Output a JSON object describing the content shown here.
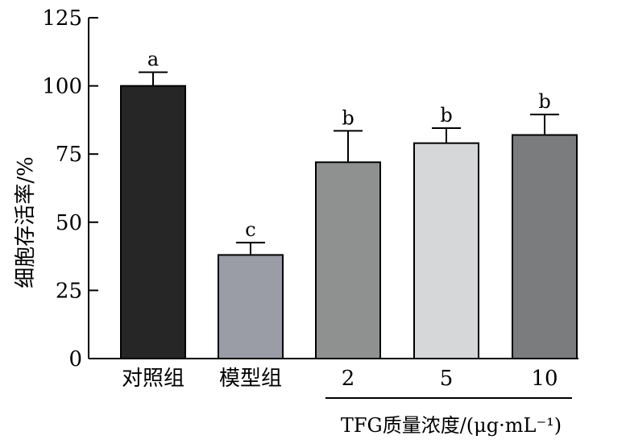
{
  "chart_data": {
    "type": "bar",
    "ylabel": "细胞存活率/%",
    "ylim": [
      0,
      125
    ],
    "yticks": [
      0,
      25,
      50,
      75,
      100,
      125
    ],
    "categories": [
      "对照组",
      "模型组",
      "2",
      "5",
      "10"
    ],
    "values": [
      100,
      38,
      72,
      79,
      82
    ],
    "errors": [
      5,
      4.5,
      11.5,
      5.5,
      7.5
    ],
    "significance": [
      "a",
      "c",
      "b",
      "b",
      "b"
    ],
    "colors": [
      "#262626",
      "#9a9ca6",
      "#8f9191",
      "#d6d7d9",
      "#7a7c7e"
    ],
    "group_label": "TFG质量浓度/(μg·mL⁻¹)",
    "grid": false,
    "legend": "none"
  }
}
